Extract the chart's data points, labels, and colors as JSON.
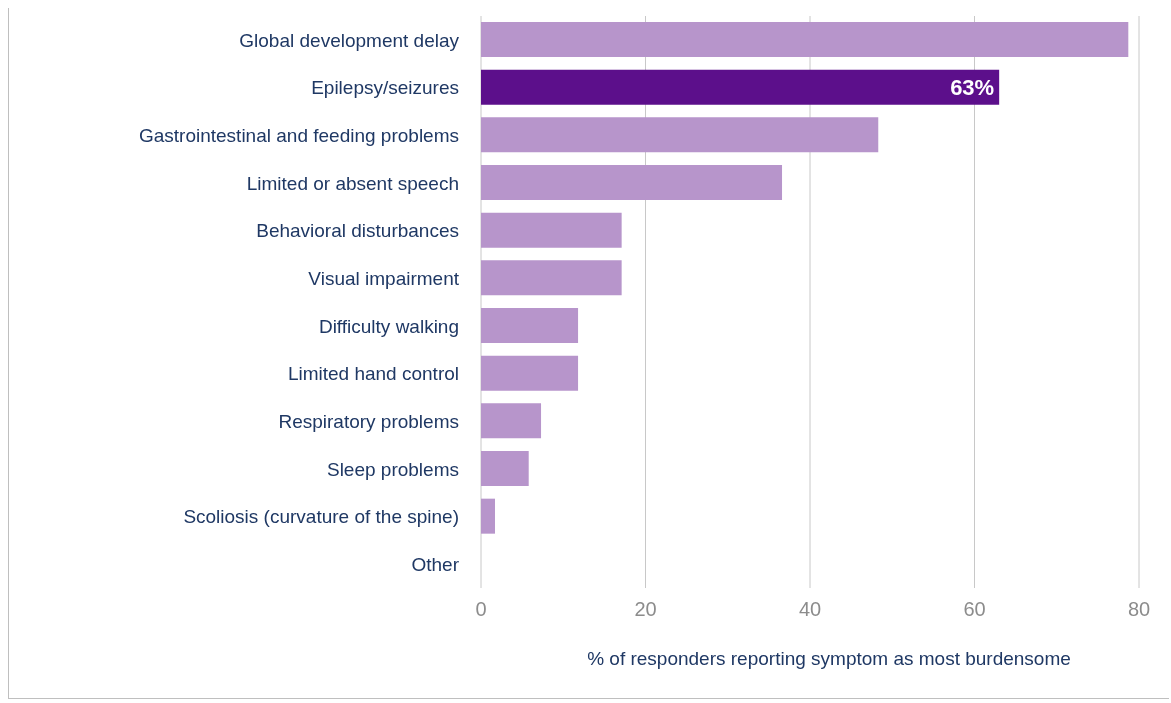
{
  "chart_data": {
    "type": "bar",
    "orientation": "horizontal",
    "categories": [
      "Global development delay",
      "Epilepsy/seizures",
      "Gastrointestinal  and feeding problems",
      "Limited or absent speech",
      "Behavioral disturbances",
      "Visual impairment",
      "Difficulty walking",
      "Limited hand control",
      "Respiratory problems",
      "Sleep problems",
      "Scoliosis (curvature of the spine)",
      "Other"
    ],
    "values": [
      78.7,
      63,
      48.3,
      36.6,
      17.1,
      17.1,
      11.8,
      11.8,
      7.3,
      5.8,
      1.7,
      0
    ],
    "colors": [
      "#b795cb",
      "#5c0f8b",
      "#b795cb",
      "#b795cb",
      "#b795cb",
      "#b795cb",
      "#b795cb",
      "#b795cb",
      "#b795cb",
      "#b795cb",
      "#b795cb",
      "#b795cb"
    ],
    "value_labels": [
      null,
      "63%",
      null,
      null,
      null,
      null,
      null,
      null,
      null,
      null,
      null,
      null
    ],
    "xlabel": "% of responders reporting symptom as most burdensome",
    "xlim": [
      0,
      80
    ],
    "xticks": [
      0,
      20,
      40,
      60,
      80
    ],
    "grid": "x"
  }
}
